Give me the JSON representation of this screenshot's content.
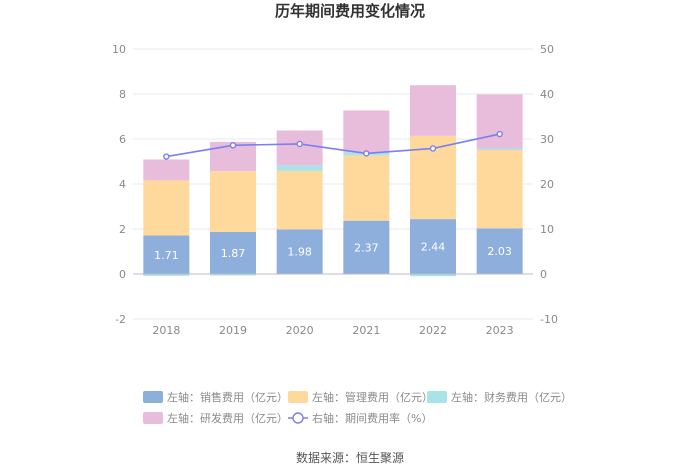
{
  "chart_data": {
    "type": "bar",
    "title": "历年期间费用变化情况",
    "categories": [
      "2018",
      "2019",
      "2020",
      "2021",
      "2022",
      "2023"
    ],
    "series": [
      {
        "name": "左轴：销售费用（亿元）",
        "axis": "left",
        "stack": true,
        "color": "#8eaedb",
        "values": [
          1.71,
          1.87,
          1.98,
          2.37,
          2.44,
          2.03
        ],
        "show_labels": true
      },
      {
        "name": "左轴：管理费用（亿元）",
        "axis": "left",
        "stack": true,
        "color": "#ffd99b",
        "values": [
          2.45,
          2.7,
          2.6,
          2.9,
          3.7,
          3.5
        ],
        "show_labels": false
      },
      {
        "name": "左轴：财务费用（亿元）",
        "axis": "left",
        "stack": true,
        "color": "#a8e3e8",
        "values": [
          -0.08,
          -0.03,
          0.25,
          0.15,
          -0.1,
          0.05
        ],
        "show_labels": false
      },
      {
        "name": "左轴：研发费用（亿元）",
        "axis": "left",
        "stack": true,
        "color": "#e8bddb",
        "values": [
          0.93,
          1.3,
          1.55,
          1.85,
          2.25,
          2.4
        ],
        "show_labels": false
      },
      {
        "name": "右轴：期间费用率（%）",
        "axis": "right",
        "type": "line",
        "color": "#7b7ff0",
        "values": [
          26.1,
          28.6,
          28.9,
          26.8,
          27.9,
          31.1
        ]
      }
    ],
    "left_axis": {
      "ticks": [
        "-2",
        "0",
        "2",
        "4",
        "6",
        "8",
        "10"
      ],
      "ylim": [
        -2,
        10
      ]
    },
    "right_axis": {
      "ticks": [
        "-10",
        "0",
        "10",
        "20",
        "30",
        "40",
        "50"
      ],
      "ylim": [
        -10,
        50
      ]
    },
    "legend_position": "bottom",
    "grid": true
  },
  "source": "数据来源：恒生聚源"
}
